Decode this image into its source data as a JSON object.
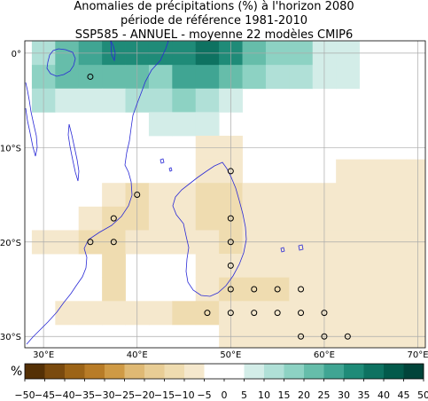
{
  "title": {
    "line1": "Anomalies de précipitations (%) à l'horizon 2080",
    "line2": "période de référence 1981-2010",
    "line3": "SSP585 - ANNUEL - moyenne 22 modèles CMIP6"
  },
  "map_data": {
    "lon_range": [
      28.0,
      70.8
    ],
    "lat_range": [
      -31.2,
      1.3
    ],
    "lon_ticks": [
      "30°E",
      "40°E",
      "50°E",
      "60°E",
      "70°E"
    ],
    "lat_ticks": [
      "0°",
      "10°S",
      "20°S",
      "30°S"
    ],
    "grid": true,
    "colorbar": {
      "unit": "%",
      "ticks": [
        "−50",
        "−45",
        "−40",
        "−35",
        "−30",
        "−25",
        "−20",
        "−15",
        "−10",
        "−5",
        "0",
        "5",
        "10",
        "15",
        "20",
        "25",
        "30",
        "35",
        "40",
        "45",
        "50"
      ],
      "colors": [
        "#543005",
        "#7a4a0e",
        "#9c6417",
        "#b87c27",
        "#cf9a45",
        "#dfb974",
        "#e8cd95",
        "#efdcb0",
        "#f5e8cd",
        "#ffffff",
        "#ffffff",
        "#d3ede8",
        "#b0e0d7",
        "#8dd2c3",
        "#66bdaa",
        "#40a593",
        "#1f8b78",
        "#0e7261",
        "#035a4b",
        "#01443a"
      ]
    },
    "anomaly_cells": [
      {
        "lon": 30,
        "lat": 0.0,
        "v": 12
      },
      {
        "lon": 32.5,
        "lat": 0.0,
        "v": 22
      },
      {
        "lon": 35,
        "lat": 0.0,
        "v": 28
      },
      {
        "lon": 37.5,
        "lat": 0.0,
        "v": 32
      },
      {
        "lon": 40,
        "lat": 0.0,
        "v": 32
      },
      {
        "lon": 42.5,
        "lat": 0.0,
        "v": 32
      },
      {
        "lon": 45,
        "lat": 0.0,
        "v": 32
      },
      {
        "lon": 47.5,
        "lat": 0.0,
        "v": 37
      },
      {
        "lon": 50,
        "lat": 0.0,
        "v": 32
      },
      {
        "lon": 52.5,
        "lat": 0.0,
        "v": 22
      },
      {
        "lon": 55,
        "lat": 0.0,
        "v": 17
      },
      {
        "lon": 57.5,
        "lat": 0.0,
        "v": 17
      },
      {
        "lon": 60,
        "lat": 0.0,
        "v": 7
      },
      {
        "lon": 62.5,
        "lat": 0.0,
        "v": 7
      },
      {
        "lon": 30,
        "lat": -2.5,
        "v": 17
      },
      {
        "lon": 32.5,
        "lat": -2.5,
        "v": 22
      },
      {
        "lon": 35,
        "lat": -2.5,
        "v": 22
      },
      {
        "lon": 37.5,
        "lat": -2.5,
        "v": 22
      },
      {
        "lon": 40,
        "lat": -2.5,
        "v": 22
      },
      {
        "lon": 42.5,
        "lat": -2.5,
        "v": 17
      },
      {
        "lon": 45,
        "lat": -2.5,
        "v": 27
      },
      {
        "lon": 47.5,
        "lat": -2.5,
        "v": 27
      },
      {
        "lon": 50,
        "lat": -2.5,
        "v": 22
      },
      {
        "lon": 52.5,
        "lat": -2.5,
        "v": 17
      },
      {
        "lon": 55,
        "lat": -2.5,
        "v": 12
      },
      {
        "lon": 57.5,
        "lat": -2.5,
        "v": 12
      },
      {
        "lon": 60,
        "lat": -2.5,
        "v": 7
      },
      {
        "lon": 62.5,
        "lat": -2.5,
        "v": 7
      },
      {
        "lon": 30,
        "lat": -5.0,
        "v": 12
      },
      {
        "lon": 32.5,
        "lat": -5.0,
        "v": 7
      },
      {
        "lon": 35,
        "lat": -5.0,
        "v": 7
      },
      {
        "lon": 37.5,
        "lat": -5.0,
        "v": 7
      },
      {
        "lon": 40,
        "lat": -5.0,
        "v": 12
      },
      {
        "lon": 42.5,
        "lat": -5.0,
        "v": 12
      },
      {
        "lon": 45,
        "lat": -5.0,
        "v": 17
      },
      {
        "lon": 47.5,
        "lat": -5.0,
        "v": 12
      },
      {
        "lon": 50,
        "lat": -5.0,
        "v": 7
      },
      {
        "lon": 42.5,
        "lat": -7.5,
        "v": 7
      },
      {
        "lon": 45,
        "lat": -7.5,
        "v": 7
      },
      {
        "lon": 47.5,
        "lat": -7.5,
        "v": 7
      },
      {
        "lon": 47.5,
        "lat": -10.0,
        "v": -7
      },
      {
        "lon": 50,
        "lat": -10.0,
        "v": -7
      },
      {
        "lon": 47.5,
        "lat": -12.5,
        "v": -7
      },
      {
        "lon": 50,
        "lat": -12.5,
        "v": -7
      },
      {
        "lon": 62.5,
        "lat": -12.5,
        "v": -7
      },
      {
        "lon": 65,
        "lat": -12.5,
        "v": -7
      },
      {
        "lon": 67.5,
        "lat": -12.5,
        "v": -7
      },
      {
        "lon": 70,
        "lat": -12.5,
        "v": -7
      },
      {
        "lon": 37.5,
        "lat": -15.0,
        "v": -7
      },
      {
        "lon": 40,
        "lat": -15.0,
        "v": -12
      },
      {
        "lon": 42.5,
        "lat": -15.0,
        "v": -7
      },
      {
        "lon": 45,
        "lat": -15.0,
        "v": -7
      },
      {
        "lon": 47.5,
        "lat": -15.0,
        "v": -12
      },
      {
        "lon": 50,
        "lat": -15.0,
        "v": -12
      },
      {
        "lon": 52.5,
        "lat": -15.0,
        "v": -7
      },
      {
        "lon": 55,
        "lat": -15.0,
        "v": -7
      },
      {
        "lon": 57.5,
        "lat": -15.0,
        "v": -7
      },
      {
        "lon": 60,
        "lat": -15.0,
        "v": -7
      },
      {
        "lon": 62.5,
        "lat": -15.0,
        "v": -7
      },
      {
        "lon": 65,
        "lat": -15.0,
        "v": -7
      },
      {
        "lon": 67.5,
        "lat": -15.0,
        "v": -7
      },
      {
        "lon": 70,
        "lat": -15.0,
        "v": -7
      },
      {
        "lon": 35,
        "lat": -17.5,
        "v": -7
      },
      {
        "lon": 37.5,
        "lat": -17.5,
        "v": -12
      },
      {
        "lon": 40,
        "lat": -17.5,
        "v": -12
      },
      {
        "lon": 42.5,
        "lat": -17.5,
        "v": -7
      },
      {
        "lon": 45,
        "lat": -17.5,
        "v": -7
      },
      {
        "lon": 47.5,
        "lat": -17.5,
        "v": -12
      },
      {
        "lon": 50,
        "lat": -17.5,
        "v": -12
      },
      {
        "lon": 52.5,
        "lat": -17.5,
        "v": -7
      },
      {
        "lon": 55,
        "lat": -17.5,
        "v": -7
      },
      {
        "lon": 57.5,
        "lat": -17.5,
        "v": -7
      },
      {
        "lon": 60,
        "lat": -17.5,
        "v": -7
      },
      {
        "lon": 62.5,
        "lat": -17.5,
        "v": -7
      },
      {
        "lon": 65,
        "lat": -17.5,
        "v": -7
      },
      {
        "lon": 67.5,
        "lat": -17.5,
        "v": -7
      },
      {
        "lon": 70,
        "lat": -17.5,
        "v": -7
      },
      {
        "lon": 30,
        "lat": -20.0,
        "v": -7
      },
      {
        "lon": 32.5,
        "lat": -20.0,
        "v": -7
      },
      {
        "lon": 35,
        "lat": -20.0,
        "v": -12
      },
      {
        "lon": 37.5,
        "lat": -20.0,
        "v": -12
      },
      {
        "lon": 40,
        "lat": -20.0,
        "v": -7
      },
      {
        "lon": 42.5,
        "lat": -20.0,
        "v": -7
      },
      {
        "lon": 45,
        "lat": -20.0,
        "v": -7
      },
      {
        "lon": 47.5,
        "lat": -20.0,
        "v": -7
      },
      {
        "lon": 50,
        "lat": -20.0,
        "v": -12
      },
      {
        "lon": 52.5,
        "lat": -20.0,
        "v": -7
      },
      {
        "lon": 55,
        "lat": -20.0,
        "v": -7
      },
      {
        "lon": 57.5,
        "lat": -20.0,
        "v": -7
      },
      {
        "lon": 60,
        "lat": -20.0,
        "v": -7
      },
      {
        "lon": 62.5,
        "lat": -20.0,
        "v": -7
      },
      {
        "lon": 65,
        "lat": -20.0,
        "v": -7
      },
      {
        "lon": 67.5,
        "lat": -20.0,
        "v": -7
      },
      {
        "lon": 70,
        "lat": -20.0,
        "v": -7
      },
      {
        "lon": 37.5,
        "lat": -22.5,
        "v": -12
      },
      {
        "lon": 47.5,
        "lat": -22.5,
        "v": -7
      },
      {
        "lon": 50,
        "lat": -22.5,
        "v": -7
      },
      {
        "lon": 52.5,
        "lat": -22.5,
        "v": -7
      },
      {
        "lon": 55,
        "lat": -22.5,
        "v": -7
      },
      {
        "lon": 57.5,
        "lat": -22.5,
        "v": -7
      },
      {
        "lon": 60,
        "lat": -22.5,
        "v": -7
      },
      {
        "lon": 62.5,
        "lat": -22.5,
        "v": -7
      },
      {
        "lon": 65,
        "lat": -22.5,
        "v": -7
      },
      {
        "lon": 67.5,
        "lat": -22.5,
        "v": -7
      },
      {
        "lon": 70,
        "lat": -22.5,
        "v": -7
      },
      {
        "lon": 37.5,
        "lat": -25.0,
        "v": -12
      },
      {
        "lon": 47.5,
        "lat": -25.0,
        "v": -7
      },
      {
        "lon": 50,
        "lat": -25.0,
        "v": -12
      },
      {
        "lon": 52.5,
        "lat": -25.0,
        "v": -12
      },
      {
        "lon": 55,
        "lat": -25.0,
        "v": -12
      },
      {
        "lon": 57.5,
        "lat": -25.0,
        "v": -7
      },
      {
        "lon": 60,
        "lat": -25.0,
        "v": -7
      },
      {
        "lon": 62.5,
        "lat": -25.0,
        "v": -7
      },
      {
        "lon": 65,
        "lat": -25.0,
        "v": -7
      },
      {
        "lon": 67.5,
        "lat": -25.0,
        "v": -7
      },
      {
        "lon": 70,
        "lat": -25.0,
        "v": -7
      },
      {
        "lon": 32.5,
        "lat": -27.5,
        "v": -7
      },
      {
        "lon": 35,
        "lat": -27.5,
        "v": -7
      },
      {
        "lon": 37.5,
        "lat": -27.5,
        "v": -7
      },
      {
        "lon": 40,
        "lat": -27.5,
        "v": -7
      },
      {
        "lon": 42.5,
        "lat": -27.5,
        "v": -7
      },
      {
        "lon": 45,
        "lat": -27.5,
        "v": -12
      },
      {
        "lon": 47.5,
        "lat": -27.5,
        "v": -12
      },
      {
        "lon": 50,
        "lat": -27.5,
        "v": -7
      },
      {
        "lon": 52.5,
        "lat": -27.5,
        "v": -7
      },
      {
        "lon": 55,
        "lat": -27.5,
        "v": -7
      },
      {
        "lon": 57.5,
        "lat": -27.5,
        "v": -7
      },
      {
        "lon": 60,
        "lat": -27.5,
        "v": -7
      },
      {
        "lon": 62.5,
        "lat": -27.5,
        "v": -7
      },
      {
        "lon": 65,
        "lat": -27.5,
        "v": -7
      },
      {
        "lon": 67.5,
        "lat": -27.5,
        "v": -7
      },
      {
        "lon": 70,
        "lat": -27.5,
        "v": -7
      },
      {
        "lon": 50,
        "lat": -30.0,
        "v": -7
      },
      {
        "lon": 52.5,
        "lat": -30.0,
        "v": -7
      },
      {
        "lon": 55,
        "lat": -30.0,
        "v": -7
      },
      {
        "lon": 57.5,
        "lat": -30.0,
        "v": -7
      },
      {
        "lon": 60,
        "lat": -30.0,
        "v": -7
      },
      {
        "lon": 62.5,
        "lat": -30.0,
        "v": -7
      },
      {
        "lon": 65,
        "lat": -30.0,
        "v": -7
      },
      {
        "lon": 67.5,
        "lat": -30.0,
        "v": -7
      },
      {
        "lon": 70,
        "lat": -30.0,
        "v": -7
      }
    ],
    "agreement_markers": [
      {
        "lon": 35.0,
        "lat": -2.5
      },
      {
        "lon": 40.0,
        "lat": -15.0
      },
      {
        "lon": 37.5,
        "lat": -17.5
      },
      {
        "lon": 35.0,
        "lat": -20.0
      },
      {
        "lon": 37.5,
        "lat": -20.0
      },
      {
        "lon": 50.0,
        "lat": -12.5
      },
      {
        "lon": 50.0,
        "lat": -17.5
      },
      {
        "lon": 50.0,
        "lat": -20.0
      },
      {
        "lon": 50.0,
        "lat": -22.5
      },
      {
        "lon": 50.0,
        "lat": -25.0
      },
      {
        "lon": 52.5,
        "lat": -25.0
      },
      {
        "lon": 55.0,
        "lat": -25.0
      },
      {
        "lon": 57.5,
        "lat": -25.0
      },
      {
        "lon": 47.5,
        "lat": -27.5
      },
      {
        "lon": 50.0,
        "lat": -27.5
      },
      {
        "lon": 52.5,
        "lat": -27.5
      },
      {
        "lon": 55.0,
        "lat": -27.5
      },
      {
        "lon": 57.5,
        "lat": -27.5
      },
      {
        "lon": 60.0,
        "lat": -27.5
      },
      {
        "lon": 57.5,
        "lat": -30.0
      },
      {
        "lon": 60.0,
        "lat": -30.0
      },
      {
        "lon": 62.5,
        "lat": -30.0
      }
    ],
    "colors": {
      "coast": "#2a2ad6",
      "grid": "#aaaaaa"
    }
  }
}
